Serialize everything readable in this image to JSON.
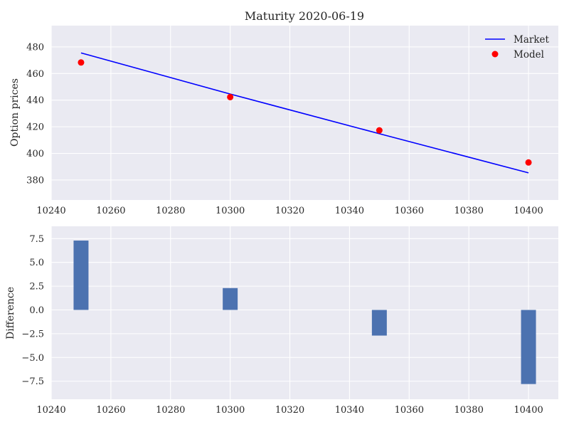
{
  "chart_data": [
    {
      "type": "line",
      "title": "Maturity 2020-06-19",
      "xlabel": "",
      "ylabel": "Option prices",
      "xlim": [
        10240,
        10410
      ],
      "ylim": [
        365,
        496
      ],
      "xticks": [
        "10240",
        "10260",
        "10280",
        "10300",
        "10320",
        "10340",
        "10360",
        "10380",
        "10400"
      ],
      "yticks": [
        "380",
        "400",
        "420",
        "440",
        "460",
        "480"
      ],
      "grid": true,
      "legend": {
        "placement": "top-right",
        "entries": [
          "Market",
          "Model"
        ]
      },
      "series": [
        {
          "name": "Market",
          "kind": "line",
          "color": "#0000ff",
          "x": [
            10250,
            10300,
            10350,
            10400
          ],
          "y": [
            475.5,
            444.6,
            414.8,
            385.4
          ]
        },
        {
          "name": "Model",
          "kind": "scatter",
          "color": "#ff0000",
          "x": [
            10250,
            10300,
            10350,
            10400
          ],
          "y": [
            468.3,
            442.3,
            417.3,
            393.2
          ]
        }
      ]
    },
    {
      "type": "bar",
      "title": "",
      "xlabel": "",
      "ylabel": "Difference",
      "xlim": [
        10240,
        10410
      ],
      "ylim": [
        -9.4,
        8.8
      ],
      "xticks": [
        "10240",
        "10260",
        "10280",
        "10300",
        "10320",
        "10340",
        "10360",
        "10380",
        "10400"
      ],
      "yticks": [
        "−7.5",
        "−5.0",
        "−2.5",
        "0.0",
        "2.5",
        "5.0",
        "7.5"
      ],
      "grid": true,
      "bar_color": "#4c72b0",
      "bar_width": 5,
      "x": [
        10250,
        10300,
        10350,
        10400
      ],
      "values": [
        7.3,
        2.3,
        -2.7,
        -7.8
      ]
    }
  ]
}
